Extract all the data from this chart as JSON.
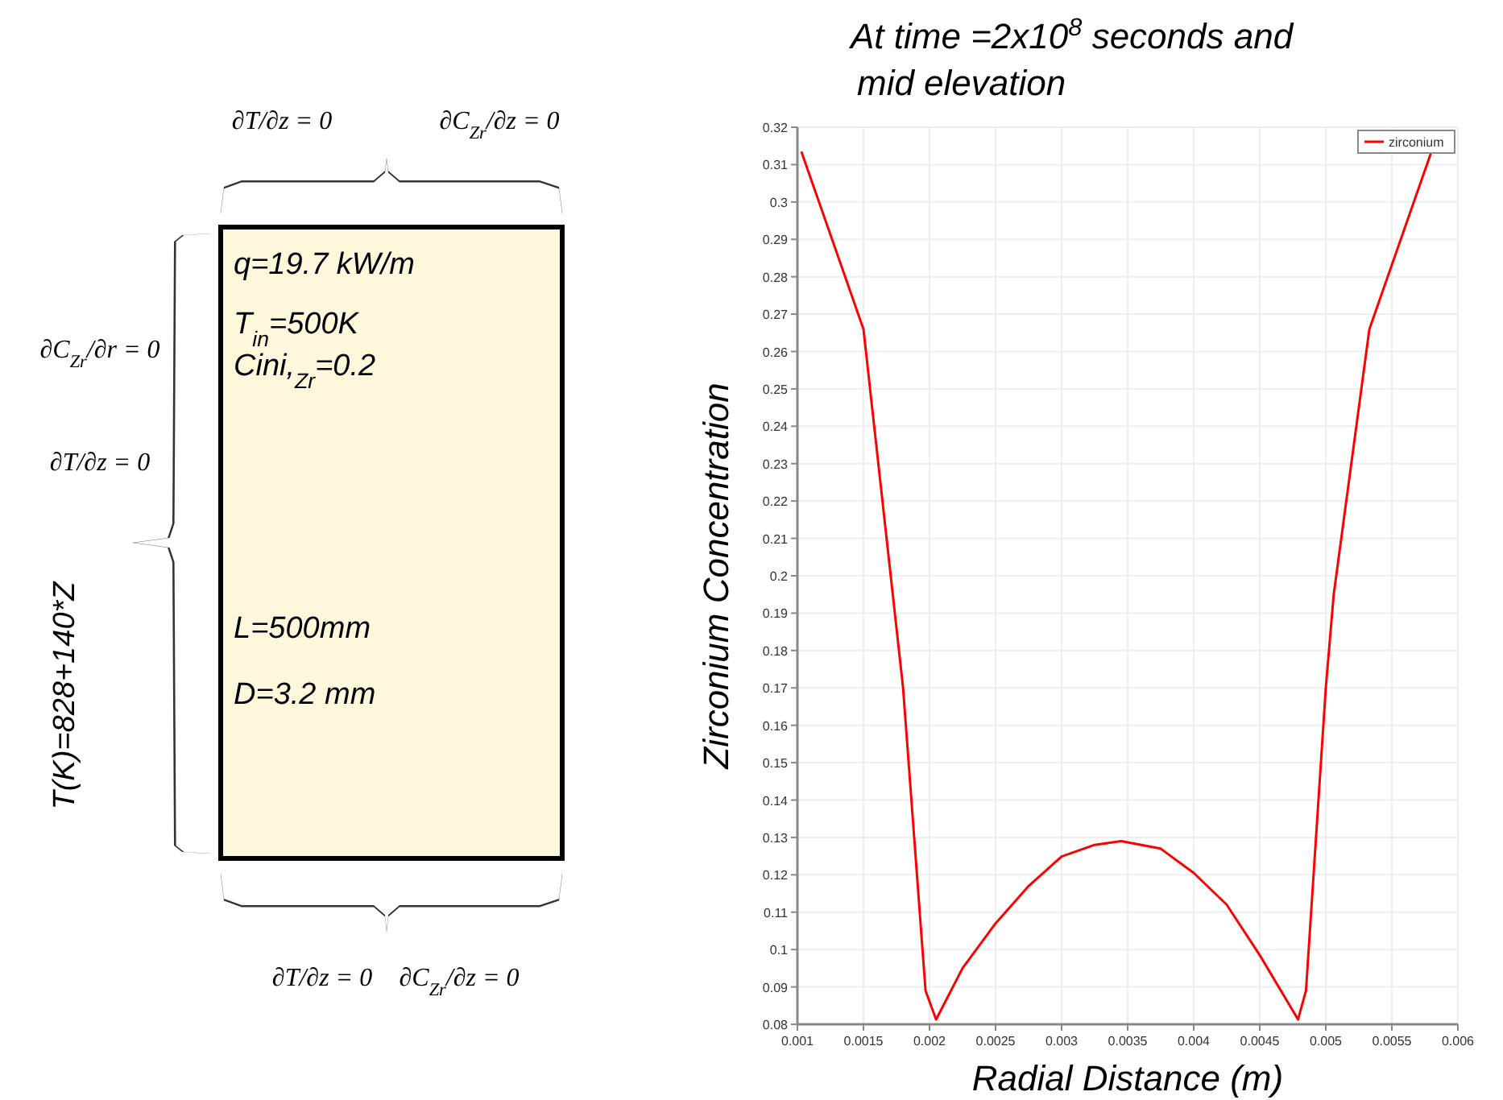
{
  "chart_data": [
    {
      "type": "other",
      "annotations": [
        "∂T/∂z = 0",
        "∂C$_{Zr}$/∂z = 0",
        "∂C$_{Zr}$/∂r = 0",
        "∂T/∂z = 0",
        "T(K)=828+140*Z",
        "q=19.7 kW/m",
        "T$_{in}$=500K",
        "Cini,$_{Zr}$=0.2",
        "L=500mm",
        "D=3.2 mm",
        "∂T/∂z = 0",
        "∂C$_{Zr}$/∂z = 0"
      ]
    },
    {
      "type": "line",
      "title": "At time =2x10$^{8}$ seconds and\nmid elevation",
      "xlabel": "Radial Distance (m)",
      "ylabel": "Zirconium Concentration",
      "xlim": [
        0.001,
        0.006
      ],
      "xticks": [
        0.001,
        0.0015,
        0.002,
        0.0025,
        0.003,
        0.0035,
        0.004,
        0.0045,
        0.005,
        0.0055,
        0.006
      ],
      "ylim": [
        0.08,
        0.32
      ],
      "yticks": [
        0.08,
        0.09,
        0.1,
        0.11,
        0.12,
        0.13,
        0.14,
        0.15,
        0.16,
        0.17,
        0.18,
        0.19,
        0.2,
        0.21,
        0.22,
        0.23,
        0.24,
        0.25,
        0.26,
        0.27,
        0.28,
        0.29,
        0.3,
        0.31,
        0.32
      ],
      "grid": true,
      "legend": "top right",
      "series": [
        {
          "name": "zirconium",
          "color": "#ff0000",
          "x": [
            0.00103,
            0.0015,
            0.0018,
            0.00197,
            0.00205,
            0.00225,
            0.0025,
            0.00275,
            0.003,
            0.00325,
            0.00345,
            0.00375,
            0.004,
            0.00425,
            0.0045,
            0.00479,
            0.00485,
            0.005,
            0.00506,
            0.00533,
            0.0058
          ],
          "values": [
            0.3135,
            0.266,
            0.17,
            0.089,
            0.0813,
            0.095,
            0.107,
            0.117,
            0.1249,
            0.128,
            0.129,
            0.127,
            0.1205,
            0.112,
            0.0985,
            0.0813,
            0.089,
            0.17,
            0.195,
            0.266,
            0.3135
          ]
        }
      ]
    }
  ]
}
